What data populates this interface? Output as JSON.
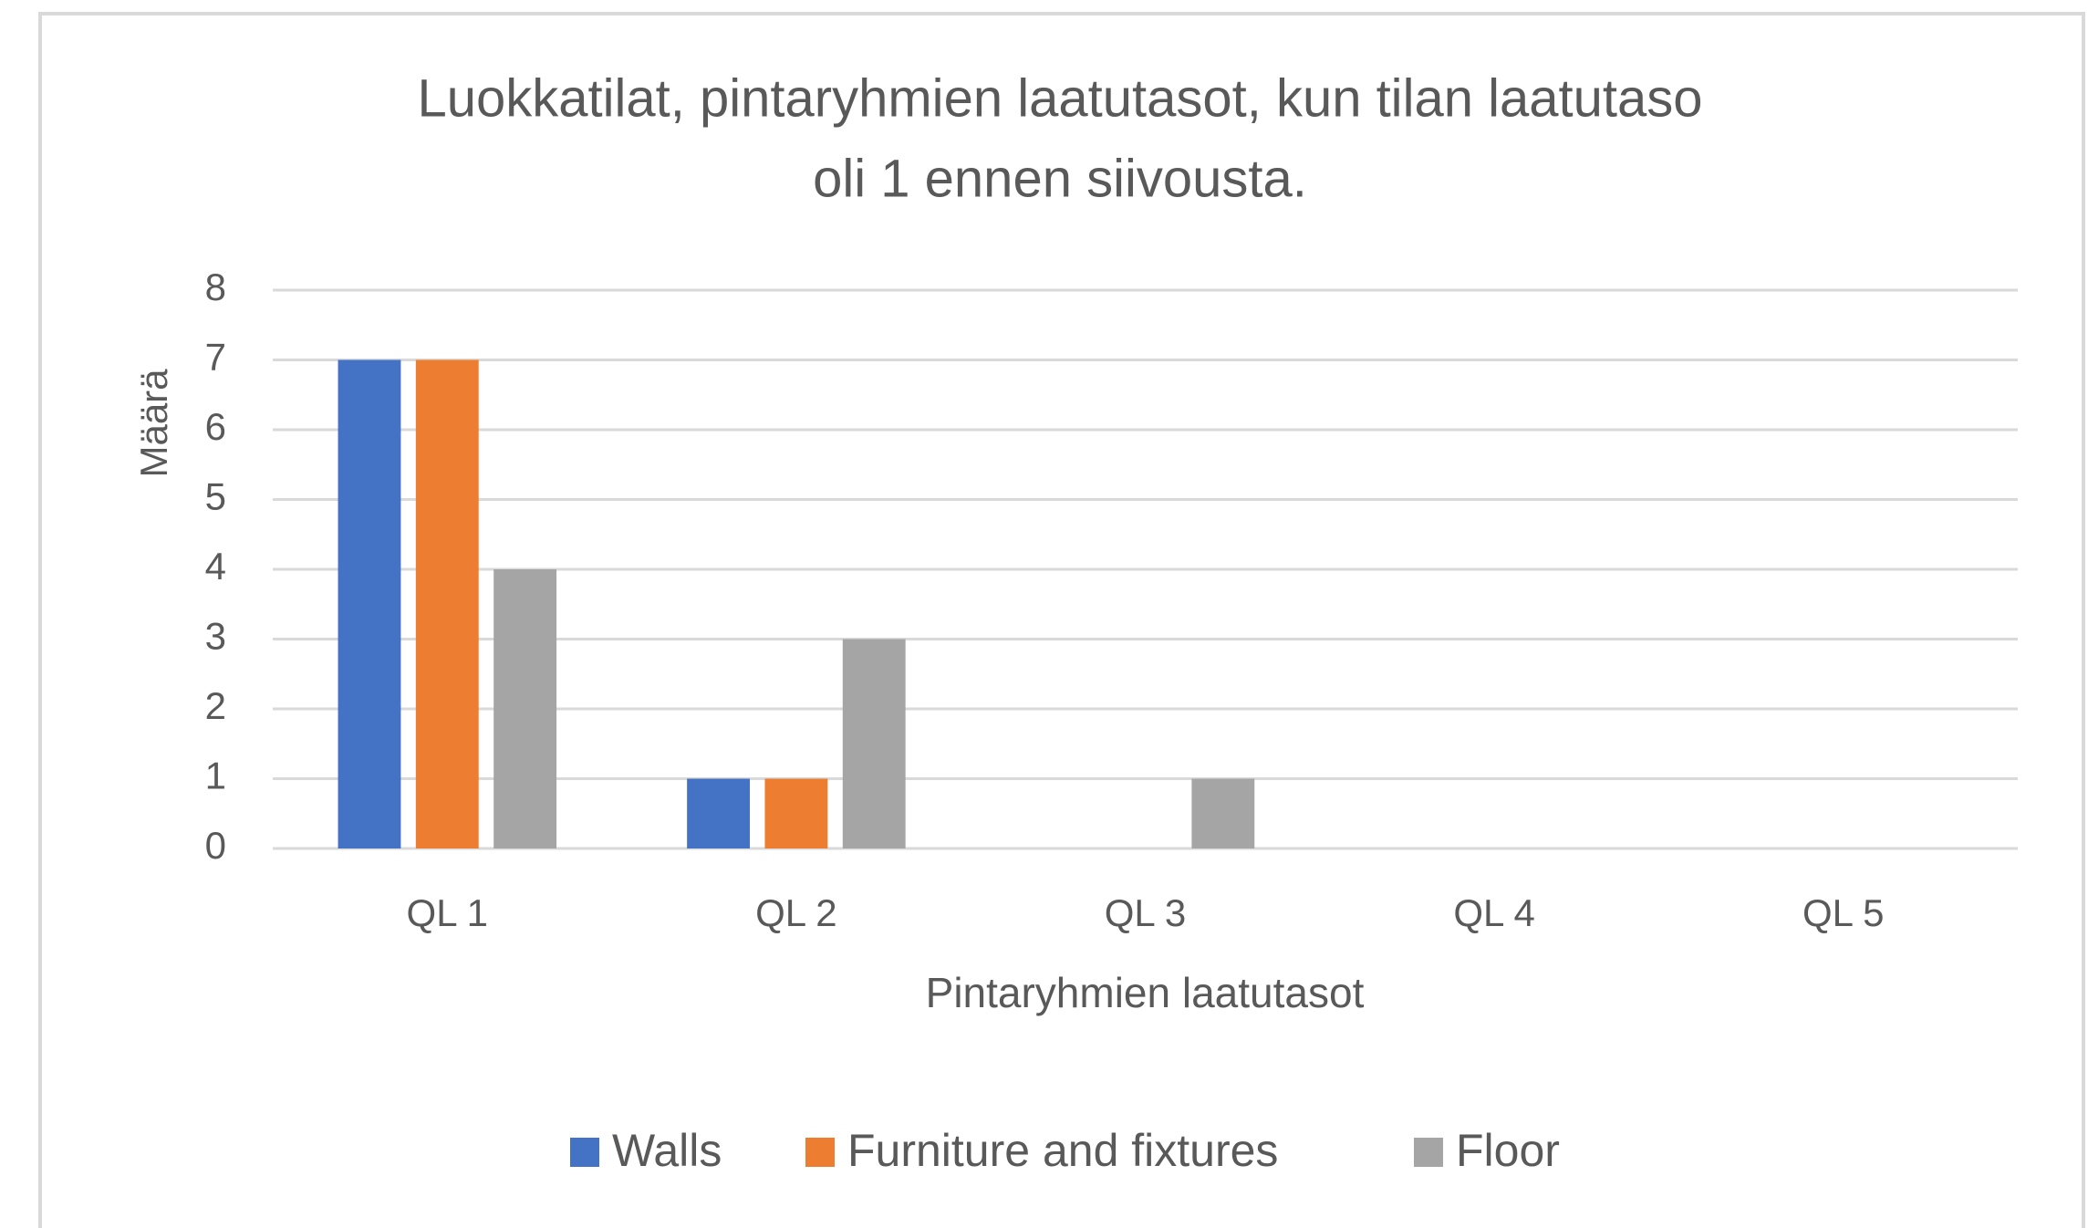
{
  "chart_data": {
    "type": "bar",
    "title": [
      "Luokkatilat, pintaryhmien laatutasot, kun tilan laatutaso",
      "oli 1 ennen siivousta."
    ],
    "x_label": "Pintaryhmien laatutasot",
    "y_label": "Määrä",
    "categories": [
      "QL 1",
      "QL 2",
      "QL 3",
      "QL 4",
      "QL 5"
    ],
    "series": [
      {
        "name": "Walls",
        "color": "#4472c4",
        "values": [
          7,
          1,
          0,
          0,
          0
        ]
      },
      {
        "name": "Furniture and fixtures",
        "color": "#ed7d31",
        "values": [
          7,
          1,
          0,
          0,
          0
        ]
      },
      {
        "name": "Floor",
        "color": "#a5a5a5",
        "values": [
          4,
          3,
          1,
          0,
          0
        ]
      }
    ],
    "ylim": [
      0,
      8
    ],
    "yticks": [
      0,
      1,
      2,
      3,
      4,
      5,
      6,
      7,
      8
    ],
    "grid": true,
    "legend": "bottom"
  }
}
